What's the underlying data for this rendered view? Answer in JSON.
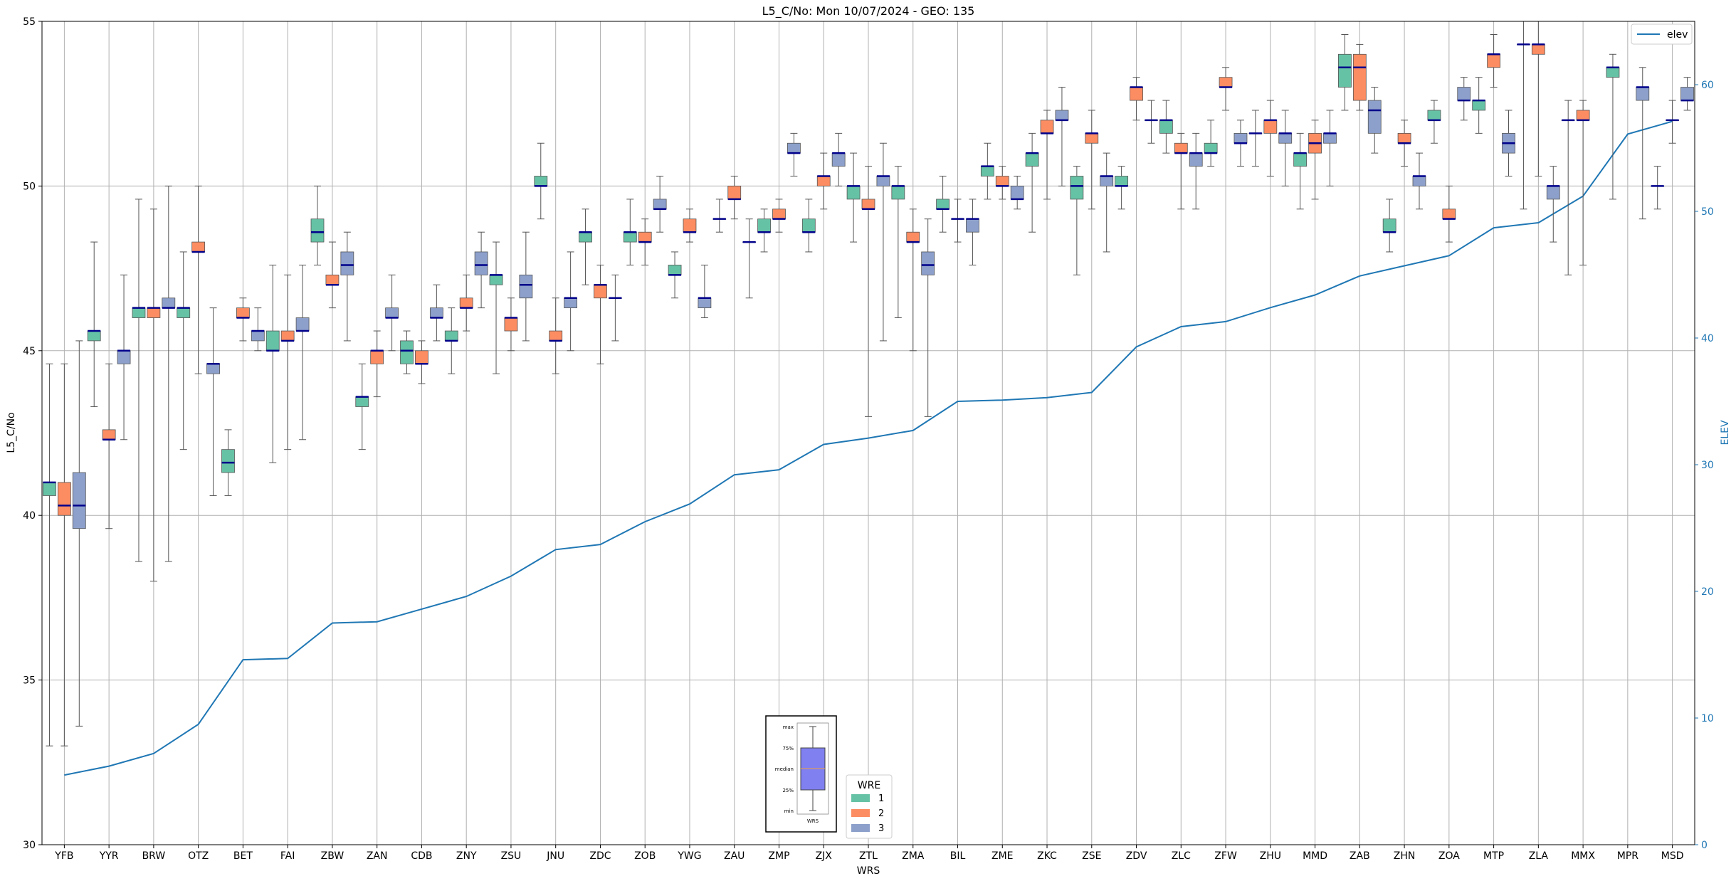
{
  "chart_data": {
    "type": "box",
    "title": "L5_C/No: Mon 10/07/2024 - GEO: 135",
    "xlabel": "WRS",
    "ylabel": "L5_C/No",
    "y2label": "ELEV",
    "ylim": [
      30,
      55
    ],
    "y2lim": [
      0,
      65
    ],
    "yticks": [
      30,
      35,
      40,
      45,
      50,
      55
    ],
    "y2ticks": [
      0,
      10,
      20,
      30,
      40,
      50,
      60
    ],
    "grid": true,
    "categories": [
      "YFB",
      "YYR",
      "BRW",
      "OTZ",
      "BET",
      "FAI",
      "ZBW",
      "ZAN",
      "CDB",
      "ZNY",
      "ZSU",
      "JNU",
      "ZDC",
      "ZOB",
      "YWG",
      "ZAU",
      "ZMP",
      "ZJX",
      "ZTL",
      "ZMA",
      "BIL",
      "ZME",
      "ZKC",
      "ZSE",
      "ZDV",
      "ZLC",
      "ZFW",
      "ZHU",
      "MMD",
      "ZAB",
      "ZHN",
      "ZOA",
      "MTP",
      "ZLA",
      "MMX",
      "MPR",
      "MSD"
    ],
    "wre_colors": {
      "1": "#66c2a5",
      "2": "#fc8d62",
      "3": "#8da0cb"
    },
    "elev_color": "#1f77b4",
    "median_color": "#00008b",
    "legend_box": {
      "title": "WRE",
      "entries": [
        "1",
        "2",
        "3"
      ],
      "placement": "bottom-center"
    },
    "legend_line": {
      "entries": [
        "elev"
      ],
      "placement": "top-right"
    },
    "key_box": {
      "labels": [
        "max",
        "75%",
        "median",
        "25%",
        "min"
      ],
      "xlabel": "WRS"
    },
    "elev_series": {
      "name": "elev",
      "values": [
        5.5,
        6.2,
        7.2,
        9.5,
        14.6,
        14.7,
        17.5,
        17.6,
        18.6,
        19.6,
        21.2,
        23.3,
        23.7,
        25.5,
        26.9,
        29.2,
        29.6,
        31.6,
        32.1,
        32.7,
        35.0,
        35.1,
        35.3,
        35.7,
        39.3,
        40.9,
        41.3,
        42.4,
        43.4,
        44.9,
        45.7,
        46.5,
        48.7,
        49.1,
        51.2,
        56.1,
        57.1
      ]
    },
    "boxes": [
      {
        "cat": "YFB",
        "wre": 1,
        "min": 33,
        "q1": 40.6,
        "median": 41,
        "q3": 41,
        "max": 44.6
      },
      {
        "cat": "YFB",
        "wre": 2,
        "min": 33,
        "q1": 40,
        "median": 40.3,
        "q3": 41,
        "max": 44.6
      },
      {
        "cat": "YFB",
        "wre": 3,
        "min": 33.6,
        "q1": 39.6,
        "median": 40.3,
        "q3": 41.3,
        "max": 45.3
      },
      {
        "cat": "YYR",
        "wre": 1,
        "min": 43.3,
        "q1": 45.3,
        "median": 45.6,
        "q3": 45.6,
        "max": 48.3
      },
      {
        "cat": "YYR",
        "wre": 2,
        "min": 39.6,
        "q1": 42.3,
        "median": 42.3,
        "q3": 42.6,
        "max": 44.6
      },
      {
        "cat": "YYR",
        "wre": 3,
        "min": 42.3,
        "q1": 44.6,
        "median": 45,
        "q3": 45,
        "max": 47.3
      },
      {
        "cat": "BRW",
        "wre": 1,
        "min": 38.6,
        "q1": 46,
        "median": 46.3,
        "q3": 46.3,
        "max": 49.6
      },
      {
        "cat": "BRW",
        "wre": 2,
        "min": 38,
        "q1": 46,
        "median": 46.3,
        "q3": 46.3,
        "max": 49.3
      },
      {
        "cat": "BRW",
        "wre": 3,
        "min": 38.6,
        "q1": 46.3,
        "median": 46.3,
        "q3": 46.6,
        "max": 50
      },
      {
        "cat": "OTZ",
        "wre": 1,
        "min": 42,
        "q1": 46,
        "median": 46.3,
        "q3": 46.3,
        "max": 48
      },
      {
        "cat": "OTZ",
        "wre": 2,
        "min": 44.3,
        "q1": 48,
        "median": 48,
        "q3": 48.3,
        "max": 50
      },
      {
        "cat": "OTZ",
        "wre": 3,
        "min": 40.6,
        "q1": 44.3,
        "median": 44.6,
        "q3": 44.6,
        "max": 46.3
      },
      {
        "cat": "BET",
        "wre": 1,
        "min": 40.6,
        "q1": 41.3,
        "median": 41.6,
        "q3": 42,
        "max": 42.6
      },
      {
        "cat": "BET",
        "wre": 2,
        "min": 45.3,
        "q1": 46,
        "median": 46,
        "q3": 46.3,
        "max": 46.6
      },
      {
        "cat": "BET",
        "wre": 3,
        "min": 45,
        "q1": 45.3,
        "median": 45.6,
        "q3": 45.6,
        "max": 46.3
      },
      {
        "cat": "FAI",
        "wre": 1,
        "min": 41.6,
        "q1": 45,
        "median": 45,
        "q3": 45.6,
        "max": 47.6
      },
      {
        "cat": "FAI",
        "wre": 2,
        "min": 42,
        "q1": 45.3,
        "median": 45.3,
        "q3": 45.6,
        "max": 47.3
      },
      {
        "cat": "FAI",
        "wre": 3,
        "min": 42.3,
        "q1": 45.6,
        "median": 45.6,
        "q3": 46,
        "max": 47.6
      },
      {
        "cat": "ZBW",
        "wre": 1,
        "min": 47.6,
        "q1": 48.3,
        "median": 48.6,
        "q3": 49,
        "max": 50
      },
      {
        "cat": "ZBW",
        "wre": 2,
        "min": 46.3,
        "q1": 47,
        "median": 47,
        "q3": 47.3,
        "max": 48.3
      },
      {
        "cat": "ZBW",
        "wre": 3,
        "min": 45.3,
        "q1": 47.3,
        "median": 47.6,
        "q3": 48,
        "max": 48.6
      },
      {
        "cat": "ZAN",
        "wre": 1,
        "min": 42,
        "q1": 43.3,
        "median": 43.6,
        "q3": 43.6,
        "max": 44.6
      },
      {
        "cat": "ZAN",
        "wre": 2,
        "min": 43.6,
        "q1": 44.6,
        "median": 45,
        "q3": 45,
        "max": 45.6
      },
      {
        "cat": "ZAN",
        "wre": 3,
        "min": 45,
        "q1": 46,
        "median": 46,
        "q3": 46.3,
        "max": 47.3
      },
      {
        "cat": "CDB",
        "wre": 1,
        "min": 44.3,
        "q1": 44.6,
        "median": 45,
        "q3": 45.3,
        "max": 45.6
      },
      {
        "cat": "CDB",
        "wre": 2,
        "min": 44,
        "q1": 44.6,
        "median": 44.6,
        "q3": 45,
        "max": 45.3
      },
      {
        "cat": "CDB",
        "wre": 3,
        "min": 45.3,
        "q1": 46,
        "median": 46,
        "q3": 46.3,
        "max": 47
      },
      {
        "cat": "ZNY",
        "wre": 1,
        "min": 44.3,
        "q1": 45.3,
        "median": 45.3,
        "q3": 45.6,
        "max": 46.3
      },
      {
        "cat": "ZNY",
        "wre": 2,
        "min": 45.6,
        "q1": 46.3,
        "median": 46.3,
        "q3": 46.6,
        "max": 47.3
      },
      {
        "cat": "ZNY",
        "wre": 3,
        "min": 46.3,
        "q1": 47.3,
        "median": 47.6,
        "q3": 48,
        "max": 48.6
      },
      {
        "cat": "ZSU",
        "wre": 1,
        "min": 44.3,
        "q1": 47,
        "median": 47.3,
        "q3": 47.3,
        "max": 48.3
      },
      {
        "cat": "ZSU",
        "wre": 2,
        "min": 45,
        "q1": 45.6,
        "median": 46,
        "q3": 46,
        "max": 46.6
      },
      {
        "cat": "ZSU",
        "wre": 3,
        "min": 45.3,
        "q1": 46.6,
        "median": 47,
        "q3": 47.3,
        "max": 48.6
      },
      {
        "cat": "JNU",
        "wre": 1,
        "min": 49,
        "q1": 50,
        "median": 50,
        "q3": 50.3,
        "max": 51.3
      },
      {
        "cat": "JNU",
        "wre": 2,
        "min": 44.3,
        "q1": 45.3,
        "median": 45.3,
        "q3": 45.6,
        "max": 46.6
      },
      {
        "cat": "JNU",
        "wre": 3,
        "min": 45,
        "q1": 46.3,
        "median": 46.6,
        "q3": 46.6,
        "max": 48
      },
      {
        "cat": "ZDC",
        "wre": 1,
        "min": 47,
        "q1": 48.3,
        "median": 48.6,
        "q3": 48.6,
        "max": 49.3
      },
      {
        "cat": "ZDC",
        "wre": 2,
        "min": 44.6,
        "q1": 46.6,
        "median": 47,
        "q3": 47,
        "max": 47.6
      },
      {
        "cat": "ZDC",
        "wre": 3,
        "min": 45.3,
        "q1": 46.6,
        "median": 46.6,
        "q3": 46.6,
        "max": 47.3
      },
      {
        "cat": "ZOB",
        "wre": 1,
        "min": 47.6,
        "q1": 48.3,
        "median": 48.6,
        "q3": 48.6,
        "max": 49.6
      },
      {
        "cat": "ZOB",
        "wre": 2,
        "min": 47.6,
        "q1": 48.3,
        "median": 48.3,
        "q3": 48.6,
        "max": 49
      },
      {
        "cat": "ZOB",
        "wre": 3,
        "min": 48.6,
        "q1": 49.3,
        "median": 49.3,
        "q3": 49.6,
        "max": 50.3
      },
      {
        "cat": "YWG",
        "wre": 1,
        "min": 46.6,
        "q1": 47.3,
        "median": 47.3,
        "q3": 47.6,
        "max": 48
      },
      {
        "cat": "YWG",
        "wre": 2,
        "min": 48.3,
        "q1": 48.6,
        "median": 48.6,
        "q3": 49,
        "max": 49.3
      },
      {
        "cat": "YWG",
        "wre": 3,
        "min": 46,
        "q1": 46.3,
        "median": 46.6,
        "q3": 46.6,
        "max": 47.6
      },
      {
        "cat": "ZAU",
        "wre": 1,
        "min": 48.6,
        "q1": 49,
        "median": 49,
        "q3": 49,
        "max": 49.6
      },
      {
        "cat": "ZAU",
        "wre": 2,
        "min": 49,
        "q1": 49.6,
        "median": 49.6,
        "q3": 50,
        "max": 50.3
      },
      {
        "cat": "ZAU",
        "wre": 3,
        "min": 46.6,
        "q1": 48.3,
        "median": 48.3,
        "q3": 48.3,
        "max": 49
      },
      {
        "cat": "ZMP",
        "wre": 1,
        "min": 48,
        "q1": 48.6,
        "median": 48.6,
        "q3": 49,
        "max": 49.3
      },
      {
        "cat": "ZMP",
        "wre": 2,
        "min": 48.6,
        "q1": 49,
        "median": 49,
        "q3": 49.3,
        "max": 49.6
      },
      {
        "cat": "ZMP",
        "wre": 3,
        "min": 50.3,
        "q1": 51,
        "median": 51,
        "q3": 51.3,
        "max": 51.6
      },
      {
        "cat": "ZJX",
        "wre": 1,
        "min": 48,
        "q1": 48.6,
        "median": 48.6,
        "q3": 49,
        "max": 49.6
      },
      {
        "cat": "ZJX",
        "wre": 2,
        "min": 49.3,
        "q1": 50,
        "median": 50.3,
        "q3": 50.3,
        "max": 51
      },
      {
        "cat": "ZJX",
        "wre": 3,
        "min": 50,
        "q1": 50.6,
        "median": 51,
        "q3": 51,
        "max": 51.6
      },
      {
        "cat": "ZTL",
        "wre": 1,
        "min": 48.3,
        "q1": 49.6,
        "median": 50,
        "q3": 50,
        "max": 51
      },
      {
        "cat": "ZTL",
        "wre": 2,
        "min": 43,
        "q1": 49.3,
        "median": 49.3,
        "q3": 49.6,
        "max": 50.6
      },
      {
        "cat": "ZTL",
        "wre": 3,
        "min": 45.3,
        "q1": 50,
        "median": 50.3,
        "q3": 50.3,
        "max": 51.3
      },
      {
        "cat": "ZMA",
        "wre": 1,
        "min": 46,
        "q1": 49.6,
        "median": 50,
        "q3": 50,
        "max": 50.6
      },
      {
        "cat": "ZMA",
        "wre": 2,
        "min": 45,
        "q1": 48.3,
        "median": 48.3,
        "q3": 48.6,
        "max": 49.3
      },
      {
        "cat": "ZMA",
        "wre": 3,
        "min": 43,
        "q1": 47.3,
        "median": 47.6,
        "q3": 48,
        "max": 49
      },
      {
        "cat": "BIL",
        "wre": 1,
        "min": 48.6,
        "q1": 49.3,
        "median": 49.3,
        "q3": 49.6,
        "max": 50.3
      },
      {
        "cat": "BIL",
        "wre": 2,
        "min": 48.3,
        "q1": 49,
        "median": 49,
        "q3": 49,
        "max": 49.6
      },
      {
        "cat": "BIL",
        "wre": 3,
        "min": 47.6,
        "q1": 48.6,
        "median": 49,
        "q3": 49,
        "max": 49.6
      },
      {
        "cat": "ZME",
        "wre": 1,
        "min": 49.6,
        "q1": 50.3,
        "median": 50.6,
        "q3": 50.6,
        "max": 51.3
      },
      {
        "cat": "ZME",
        "wre": 2,
        "min": 49.6,
        "q1": 50,
        "median": 50,
        "q3": 50.3,
        "max": 50.6
      },
      {
        "cat": "ZME",
        "wre": 3,
        "min": 49.3,
        "q1": 49.6,
        "median": 49.6,
        "q3": 50,
        "max": 50.3
      },
      {
        "cat": "ZKC",
        "wre": 1,
        "min": 48.6,
        "q1": 50.6,
        "median": 51,
        "q3": 51,
        "max": 51.6
      },
      {
        "cat": "ZKC",
        "wre": 2,
        "min": 49.6,
        "q1": 51.6,
        "median": 51.6,
        "q3": 52,
        "max": 52.3
      },
      {
        "cat": "ZKC",
        "wre": 3,
        "min": 50,
        "q1": 52,
        "median": 52,
        "q3": 52.3,
        "max": 53
      },
      {
        "cat": "ZSE",
        "wre": 1,
        "min": 47.3,
        "q1": 49.6,
        "median": 50,
        "q3": 50.3,
        "max": 50.6
      },
      {
        "cat": "ZSE",
        "wre": 2,
        "min": 49.3,
        "q1": 51.3,
        "median": 51.6,
        "q3": 51.6,
        "max": 52.3
      },
      {
        "cat": "ZSE",
        "wre": 3,
        "min": 48,
        "q1": 50,
        "median": 50.3,
        "q3": 50.3,
        "max": 51
      },
      {
        "cat": "ZDV",
        "wre": 1,
        "min": 49.3,
        "q1": 50,
        "median": 50,
        "q3": 50.3,
        "max": 50.6
      },
      {
        "cat": "ZDV",
        "wre": 2,
        "min": 52,
        "q1": 52.6,
        "median": 53,
        "q3": 53,
        "max": 53.3
      },
      {
        "cat": "ZDV",
        "wre": 3,
        "min": 51.3,
        "q1": 52,
        "median": 52,
        "q3": 52,
        "max": 52.6
      },
      {
        "cat": "ZLC",
        "wre": 1,
        "min": 51,
        "q1": 51.6,
        "median": 52,
        "q3": 52,
        "max": 52.6
      },
      {
        "cat": "ZLC",
        "wre": 2,
        "min": 49.3,
        "q1": 51,
        "median": 51,
        "q3": 51.3,
        "max": 51.6
      },
      {
        "cat": "ZLC",
        "wre": 3,
        "min": 49.3,
        "q1": 50.6,
        "median": 51,
        "q3": 51,
        "max": 51.6
      },
      {
        "cat": "ZFW",
        "wre": 1,
        "min": 50.6,
        "q1": 51,
        "median": 51,
        "q3": 51.3,
        "max": 52
      },
      {
        "cat": "ZFW",
        "wre": 2,
        "min": 52.3,
        "q1": 53,
        "median": 53,
        "q3": 53.3,
        "max": 53.6
      },
      {
        "cat": "ZFW",
        "wre": 3,
        "min": 50.6,
        "q1": 51.3,
        "median": 51.3,
        "q3": 51.6,
        "max": 52
      },
      {
        "cat": "ZHU",
        "wre": 1,
        "min": 50.6,
        "q1": 51.6,
        "median": 51.6,
        "q3": 51.6,
        "max": 52.3
      },
      {
        "cat": "ZHU",
        "wre": 2,
        "min": 50.3,
        "q1": 51.6,
        "median": 52,
        "q3": 52,
        "max": 52.6
      },
      {
        "cat": "ZHU",
        "wre": 3,
        "min": 50,
        "q1": 51.3,
        "median": 51.6,
        "q3": 51.6,
        "max": 52.3
      },
      {
        "cat": "MMD",
        "wre": 1,
        "min": 49.3,
        "q1": 50.6,
        "median": 51,
        "q3": 51,
        "max": 51.6
      },
      {
        "cat": "MMD",
        "wre": 2,
        "min": 49.6,
        "q1": 51,
        "median": 51.3,
        "q3": 51.6,
        "max": 52
      },
      {
        "cat": "MMD",
        "wre": 3,
        "min": 50,
        "q1": 51.3,
        "median": 51.6,
        "q3": 51.6,
        "max": 52.3
      },
      {
        "cat": "ZAB",
        "wre": 1,
        "min": 52.3,
        "q1": 53,
        "median": 53.6,
        "q3": 54,
        "max": 54.6
      },
      {
        "cat": "ZAB",
        "wre": 2,
        "min": 52.3,
        "q1": 52.6,
        "median": 53.6,
        "q3": 54,
        "max": 54.3
      },
      {
        "cat": "ZAB",
        "wre": 3,
        "min": 51,
        "q1": 51.6,
        "median": 52.3,
        "q3": 52.6,
        "max": 53
      },
      {
        "cat": "ZHN",
        "wre": 1,
        "min": 48,
        "q1": 48.6,
        "median": 48.6,
        "q3": 49,
        "max": 49.6
      },
      {
        "cat": "ZHN",
        "wre": 2,
        "min": 50.6,
        "q1": 51.3,
        "median": 51.3,
        "q3": 51.6,
        "max": 52
      },
      {
        "cat": "ZHN",
        "wre": 3,
        "min": 49.3,
        "q1": 50,
        "median": 50.3,
        "q3": 50.3,
        "max": 51
      },
      {
        "cat": "ZOA",
        "wre": 1,
        "min": 51.3,
        "q1": 52,
        "median": 52,
        "q3": 52.3,
        "max": 52.6
      },
      {
        "cat": "ZOA",
        "wre": 2,
        "min": 48.3,
        "q1": 49,
        "median": 49,
        "q3": 49.3,
        "max": 50
      },
      {
        "cat": "ZOA",
        "wre": 3,
        "min": 52,
        "q1": 52.6,
        "median": 52.6,
        "q3": 53,
        "max": 53.3
      },
      {
        "cat": "MTP",
        "wre": 1,
        "min": 51.6,
        "q1": 52.3,
        "median": 52.6,
        "q3": 52.6,
        "max": 53.3
      },
      {
        "cat": "MTP",
        "wre": 2,
        "min": 53,
        "q1": 53.6,
        "median": 54,
        "q3": 54,
        "max": 54.6
      },
      {
        "cat": "MTP",
        "wre": 3,
        "min": 50.3,
        "q1": 51,
        "median": 51.3,
        "q3": 51.6,
        "max": 52.3
      },
      {
        "cat": "ZLA",
        "wre": 1,
        "min": 49.3,
        "q1": 54.3,
        "median": 54.3,
        "q3": 54.3,
        "max": 55
      },
      {
        "cat": "ZLA",
        "wre": 2,
        "min": 50.3,
        "q1": 54,
        "median": 54.3,
        "q3": 54.3,
        "max": 55
      },
      {
        "cat": "ZLA",
        "wre": 3,
        "min": 48.3,
        "q1": 49.6,
        "median": 50,
        "q3": 50,
        "max": 50.6
      },
      {
        "cat": "MMX",
        "wre": 1,
        "min": 47.3,
        "q1": 52,
        "median": 52,
        "q3": 52,
        "max": 52.6
      },
      {
        "cat": "MMX",
        "wre": 2,
        "min": 47.6,
        "q1": 52,
        "median": 52,
        "q3": 52.3,
        "max": 52.6
      },
      {
        "cat": "MPR",
        "wre": 1,
        "min": 49.6,
        "q1": 53.3,
        "median": 53.6,
        "q3": 53.6,
        "max": 54
      },
      {
        "cat": "MPR",
        "wre": 3,
        "min": 49,
        "q1": 52.6,
        "median": 53,
        "q3": 53,
        "max": 53.6
      },
      {
        "cat": "MSD",
        "wre": 1,
        "min": 49.3,
        "q1": 50,
        "median": 50,
        "q3": 50,
        "max": 50.6
      },
      {
        "cat": "MSD",
        "wre": 2,
        "min": 51.3,
        "q1": 52,
        "median": 52,
        "q3": 52,
        "max": 52.6
      },
      {
        "cat": "MSD",
        "wre": 3,
        "min": 52.3,
        "q1": 52.6,
        "median": 52.6,
        "q3": 53,
        "max": 53.3
      }
    ]
  }
}
